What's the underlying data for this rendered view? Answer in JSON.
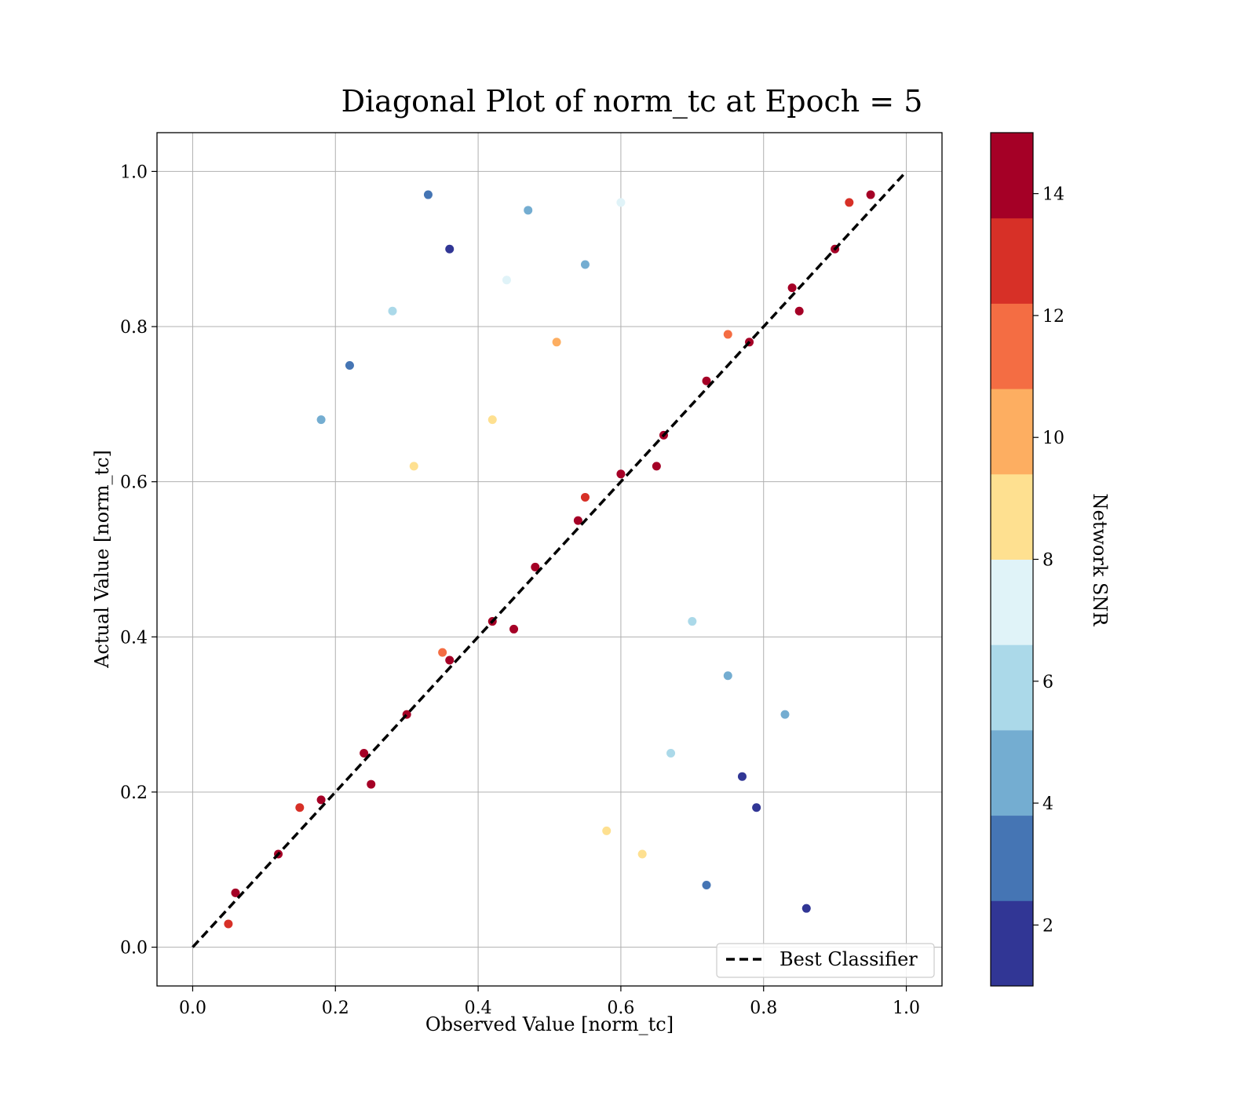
{
  "chart_data": {
    "type": "scatter",
    "title": "Diagonal Plot of norm_tc at Epoch = 5",
    "xlabel": "Observed Value [norm_tc]",
    "ylabel": "Actual Value [norm_tc]",
    "xlim": [
      -0.05,
      1.05
    ],
    "ylim": [
      -0.05,
      1.05
    ],
    "xticks": [
      "0.0",
      "0.2",
      "0.4",
      "0.6",
      "0.8",
      "1.0"
    ],
    "yticks": [
      "0.0",
      "0.2",
      "0.4",
      "0.6",
      "0.8",
      "1.0"
    ],
    "grid": true,
    "legend": {
      "placement": "lower-right",
      "entries": [
        "Best Classifier"
      ]
    },
    "reference_line": {
      "name": "Best Classifier",
      "x": [
        0,
        1
      ],
      "y": [
        0,
        1
      ],
      "style": "dashed",
      "color": "#000000"
    },
    "colorbar": {
      "label": "Network SNR",
      "range": [
        1,
        15
      ],
      "ticks": [
        "2",
        "4",
        "6",
        "8",
        "10",
        "12",
        "14"
      ],
      "levels": 10,
      "colormap": [
        "#313695",
        "#4575b4",
        "#74add1",
        "#abd9e9",
        "#e0f3f8",
        "#fee090",
        "#fdae61",
        "#f46d43",
        "#d73027",
        "#a50026"
      ]
    },
    "series": [
      {
        "x": [
          0.06,
          0.12,
          0.18,
          0.24,
          0.3,
          0.36,
          0.42,
          0.48,
          0.54,
          0.6,
          0.66,
          0.72,
          0.78,
          0.84,
          0.9,
          0.95,
          0.05,
          0.15,
          0.25,
          0.35,
          0.45,
          0.55,
          0.65,
          0.75,
          0.85,
          0.92
        ],
        "y": [
          0.07,
          0.12,
          0.19,
          0.25,
          0.3,
          0.37,
          0.42,
          0.49,
          0.55,
          0.61,
          0.66,
          0.73,
          0.78,
          0.85,
          0.9,
          0.97,
          0.03,
          0.18,
          0.21,
          0.38,
          0.41,
          0.58,
          0.62,
          0.79,
          0.82,
          0.96
        ],
        "snr": [
          14,
          14,
          14,
          14,
          14,
          14,
          14,
          14,
          14,
          14,
          14,
          14,
          14,
          14,
          14,
          14,
          13,
          13,
          14,
          12,
          14,
          13,
          14,
          12,
          14,
          13
        ]
      },
      {
        "x": [
          0.22,
          0.28,
          0.31,
          0.36,
          0.42,
          0.47,
          0.51,
          0.55,
          0.6,
          0.63,
          0.67,
          0.72,
          0.75,
          0.79,
          0.83,
          0.86,
          0.18,
          0.33,
          0.44,
          0.58,
          0.7,
          0.77
        ],
        "y": [
          0.75,
          0.82,
          0.62,
          0.9,
          0.68,
          0.95,
          0.78,
          0.88,
          0.96,
          0.12,
          0.25,
          0.08,
          0.35,
          0.18,
          0.3,
          0.05,
          0.68,
          0.97,
          0.86,
          0.15,
          0.42,
          0.22
        ],
        "snr": [
          3,
          6,
          9,
          2,
          8,
          5,
          10,
          4,
          7,
          8,
          6,
          3,
          5,
          2,
          4,
          1,
          5,
          3,
          7,
          9,
          6,
          2
        ]
      }
    ]
  }
}
